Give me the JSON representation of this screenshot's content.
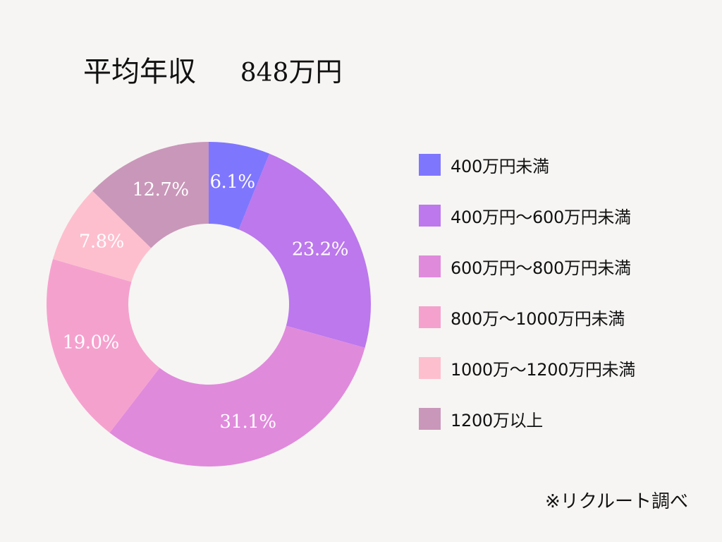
{
  "title": {
    "label": "平均年収",
    "value": "848",
    "unit": "万円"
  },
  "source_note": "※リクルート調べ",
  "chart_data": {
    "type": "pie",
    "title": "平均年収 848万円",
    "categories": [
      "400万円未満",
      "400万円〜600万円未満",
      "600万円〜800万円未満",
      "800万〜1000万円未満",
      "1000万〜1200万円未満",
      "1200万以上"
    ],
    "values": [
      6.1,
      23.2,
      31.1,
      19.0,
      7.8,
      12.7
    ],
    "value_labels": [
      "6.1%",
      "23.2%",
      "31.1%",
      "19.0%",
      "7.8%",
      "12.7%"
    ],
    "colors": [
      "#7f76fe",
      "#bc78ec",
      "#e08adc",
      "#f5a1ce",
      "#fdbfce",
      "#c997b9"
    ],
    "legend_position": "right",
    "donut": true
  }
}
